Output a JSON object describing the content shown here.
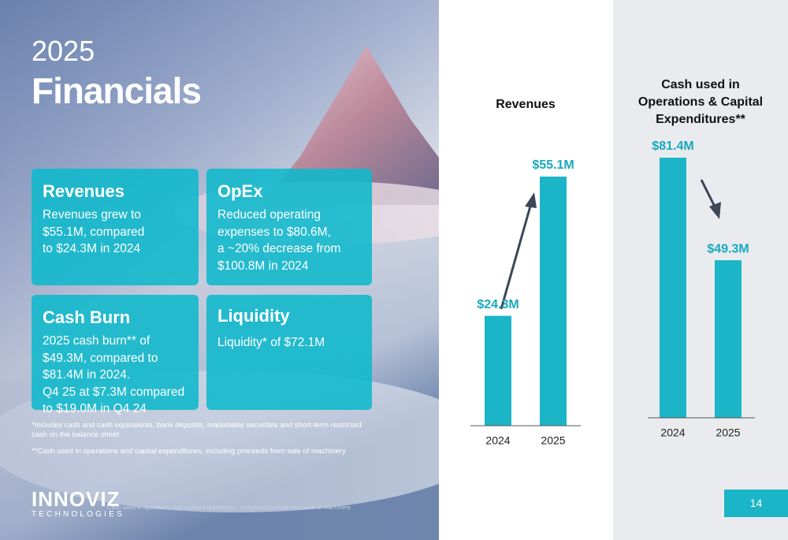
{
  "slide": {
    "year": "2025",
    "title": "Financials",
    "cards": [
      {
        "heading": "Revenues",
        "lines": [
          "Revenues grew to",
          "$55.1M, compared",
          "to $24.3M in 2024"
        ]
      },
      {
        "heading": "OpEx",
        "lines": [
          "Reduced operating",
          "expenses to $80.6M,",
          "a ~20% decrease from",
          "$100.8M in 2024"
        ]
      },
      {
        "heading": "Cash Burn",
        "lines": [
          "2025 cash burn** of",
          "$49.3M, compared to",
          "$81.4M in 2024.",
          "Q4 25 at $7.3M compared",
          "to $19.0M in Q4 24"
        ]
      },
      {
        "heading": "Liquidity",
        "lines": [
          "Liquidity* of $72.1M"
        ]
      }
    ],
    "footnotes": [
      "*Includes cash and cash equivalents, bank deposits, marketable securities and short-term restricted",
      "cash on the balance sheet",
      "**Cash used in operations and capital expenditures, including proceeds from sale of machinery"
    ],
    "logo": "INNOVIZ",
    "logo_sub": "TECHNOLOGIES",
    "bottom_note": "Cash used in operations and capital expenditures, including proceeds from sale of machinery",
    "page_number": "14"
  },
  "chart_data": [
    {
      "type": "bar",
      "title": [
        "Revenues"
      ],
      "categories": [
        "2024",
        "2025"
      ],
      "values": [
        24.3,
        55.1
      ],
      "value_labels": [
        "$24.3M",
        "$55.1M"
      ],
      "color": "#1bb5c7"
    },
    {
      "type": "bar",
      "title": [
        "Cash used in",
        "Operations & Capital",
        "Expenditures**"
      ],
      "categories": [
        "2024",
        "2025"
      ],
      "values": [
        81.4,
        49.3
      ],
      "value_labels": [
        "$81.4M",
        "$49.3M"
      ],
      "color": "#1bb5c7"
    }
  ]
}
